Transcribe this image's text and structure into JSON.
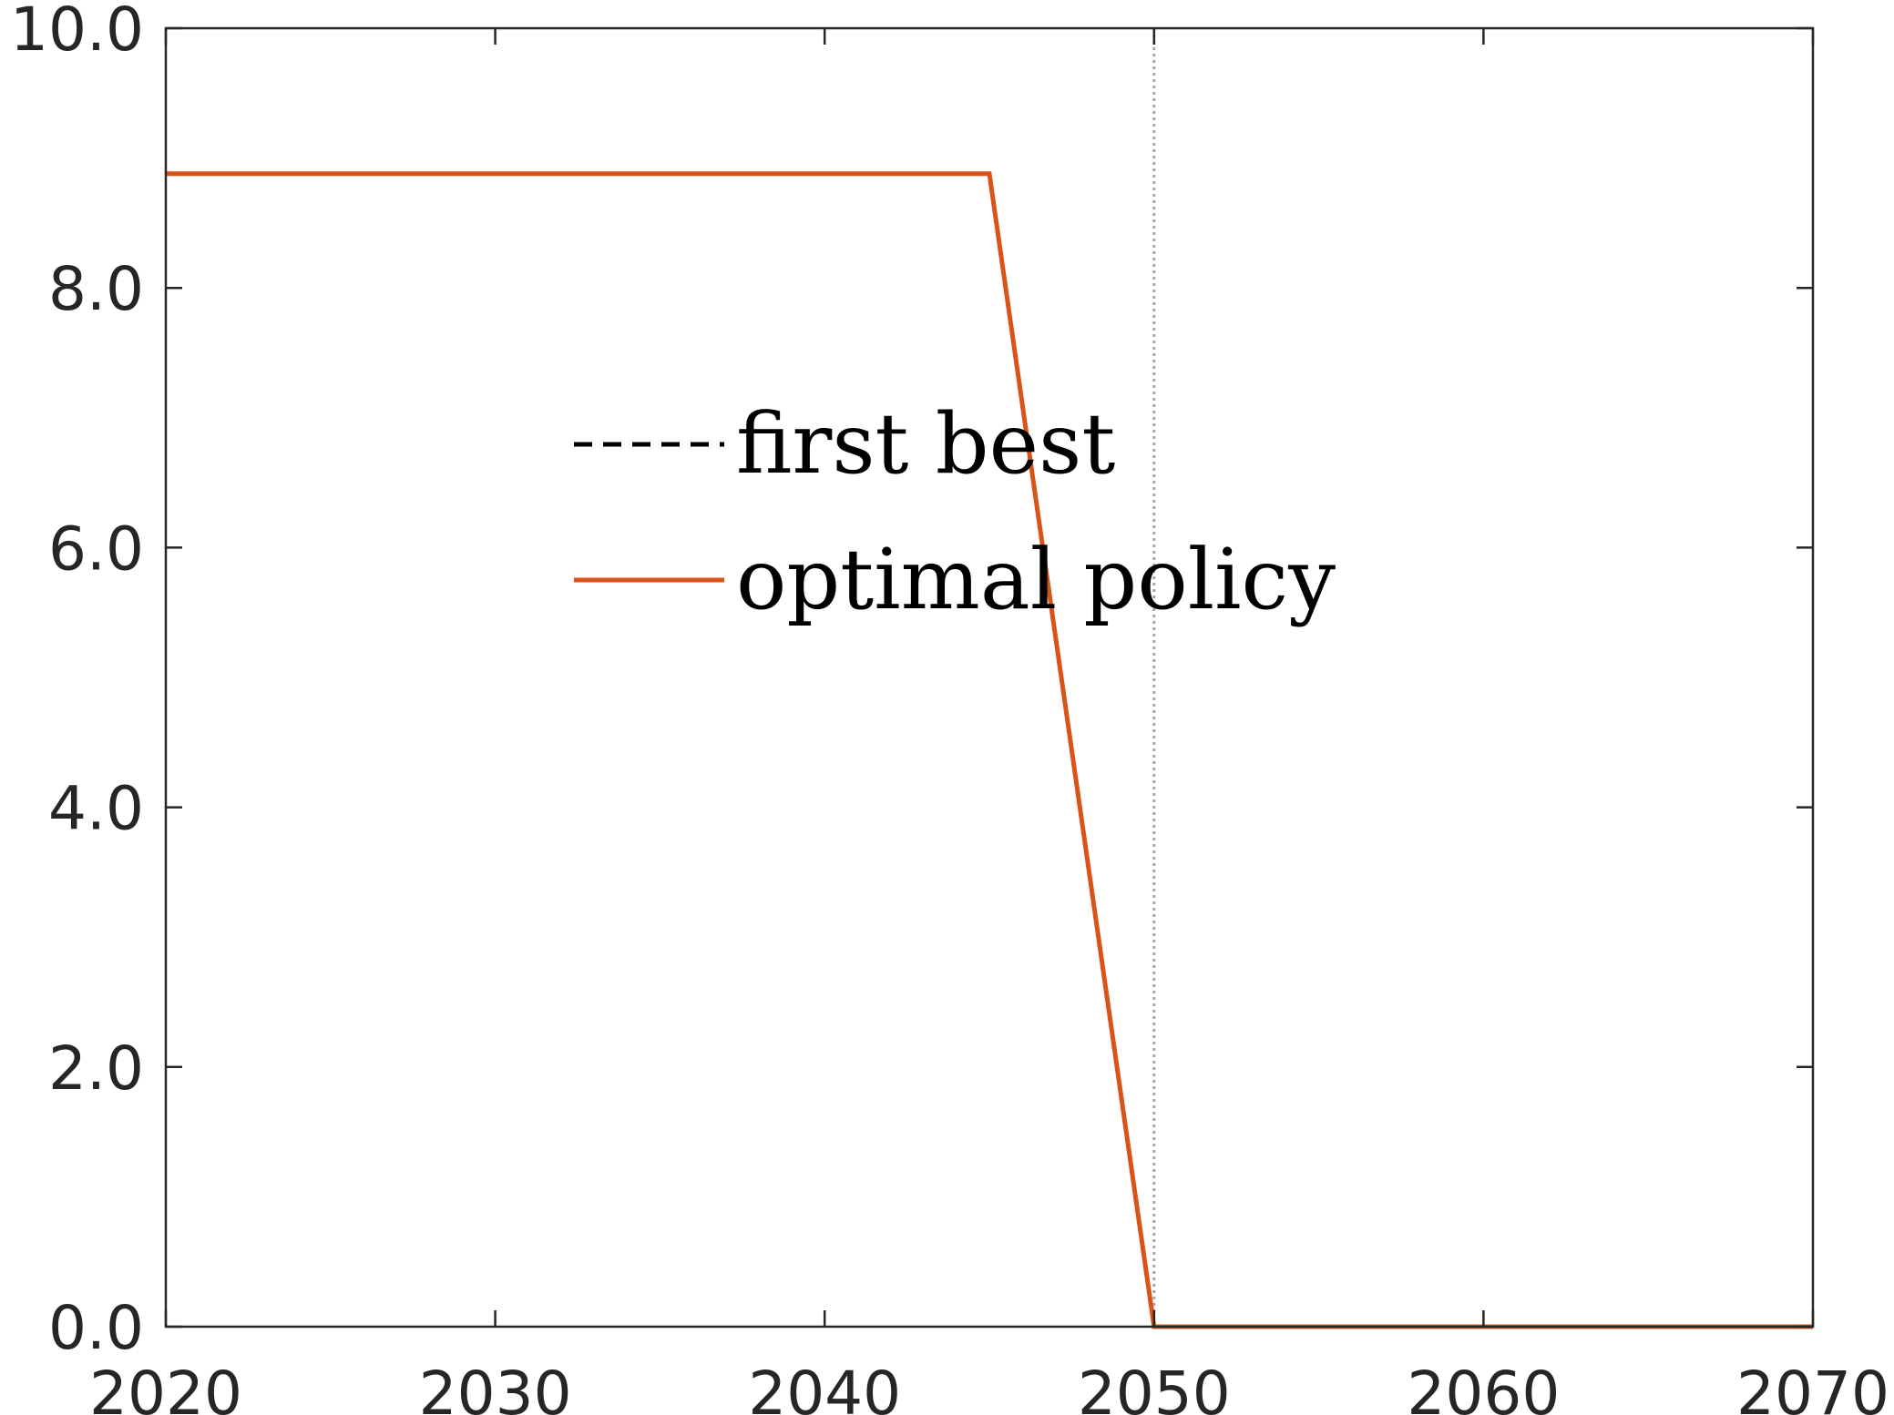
{
  "chart_data": {
    "type": "line",
    "title": "",
    "xlabel": "",
    "ylabel": "",
    "xlim": [
      2020,
      2070
    ],
    "ylim": [
      0,
      10
    ],
    "x_ticks": [
      2020,
      2030,
      2040,
      2050,
      2060,
      2070
    ],
    "y_ticks": [
      0,
      2,
      4,
      6,
      8,
      10
    ],
    "x_tick_labels": [
      "2020",
      "2030",
      "2040",
      "2050",
      "2060",
      "2070"
    ],
    "y_tick_labels": [
      "0.0",
      "2.0",
      "4.0",
      "6.0",
      "8.0",
      "10.0"
    ],
    "grid": false,
    "legend_placement": "center-left",
    "series": [
      {
        "name": "first best",
        "style": "dashed",
        "color": "#000000",
        "x": [],
        "y": []
      },
      {
        "name": "optimal policy",
        "style": "solid",
        "color": "#d95319",
        "x": [
          2020,
          2045,
          2050,
          2070
        ],
        "y": [
          8.88,
          8.88,
          0,
          0
        ]
      }
    ],
    "reference_lines": [
      {
        "axis": "x",
        "value": 2050,
        "style": "dotted",
        "color": "#a6a6a6"
      }
    ]
  }
}
